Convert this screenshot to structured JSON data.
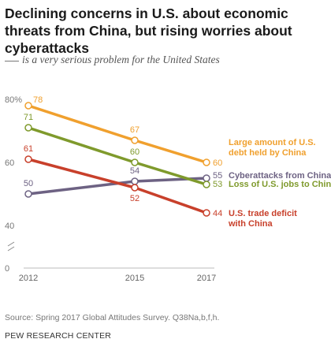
{
  "header": {
    "title": "Declining concerns in U.S. about economic threats from China, but rising worries about cyberattacks",
    "subtitle": "is a very serious problem for the United States"
  },
  "footer": {
    "source": "Source: Spring 2017 Global Attitudes Survey. Q38Na,b,f,h.",
    "org": "PEW RESEARCH CENTER"
  },
  "chart_data": {
    "type": "line",
    "x": [
      2012,
      2015,
      2017
    ],
    "x_tick_labels": [
      "2012",
      "2015",
      "2017"
    ],
    "y_tick_labels": [
      "80%",
      "60",
      "40",
      "0"
    ],
    "ylim": [
      0,
      80
    ],
    "axis_break": true,
    "grid": false,
    "legend": "inline-right",
    "series": [
      {
        "name": "Large amount of U.S. debt held by China",
        "label_lines": [
          "Large amount of U.S.",
          "debt held by China"
        ],
        "color": "#F0A02E",
        "values": [
          78,
          67,
          60
        ]
      },
      {
        "name": "Cyberattacks from China",
        "label_lines": [
          "Cyberattacks from China"
        ],
        "color": "#6D6283",
        "values": [
          50,
          54,
          55
        ]
      },
      {
        "name": "Loss of U.S. jobs to China",
        "label_lines": [
          "Loss of U.S. jobs to China"
        ],
        "color": "#7F9A2C",
        "values": [
          71,
          60,
          53
        ]
      },
      {
        "name": "U.S. trade deficit with China",
        "label_lines": [
          "U.S. trade deficit",
          "with China"
        ],
        "color": "#C8402B",
        "values": [
          61,
          52,
          44
        ]
      }
    ]
  }
}
